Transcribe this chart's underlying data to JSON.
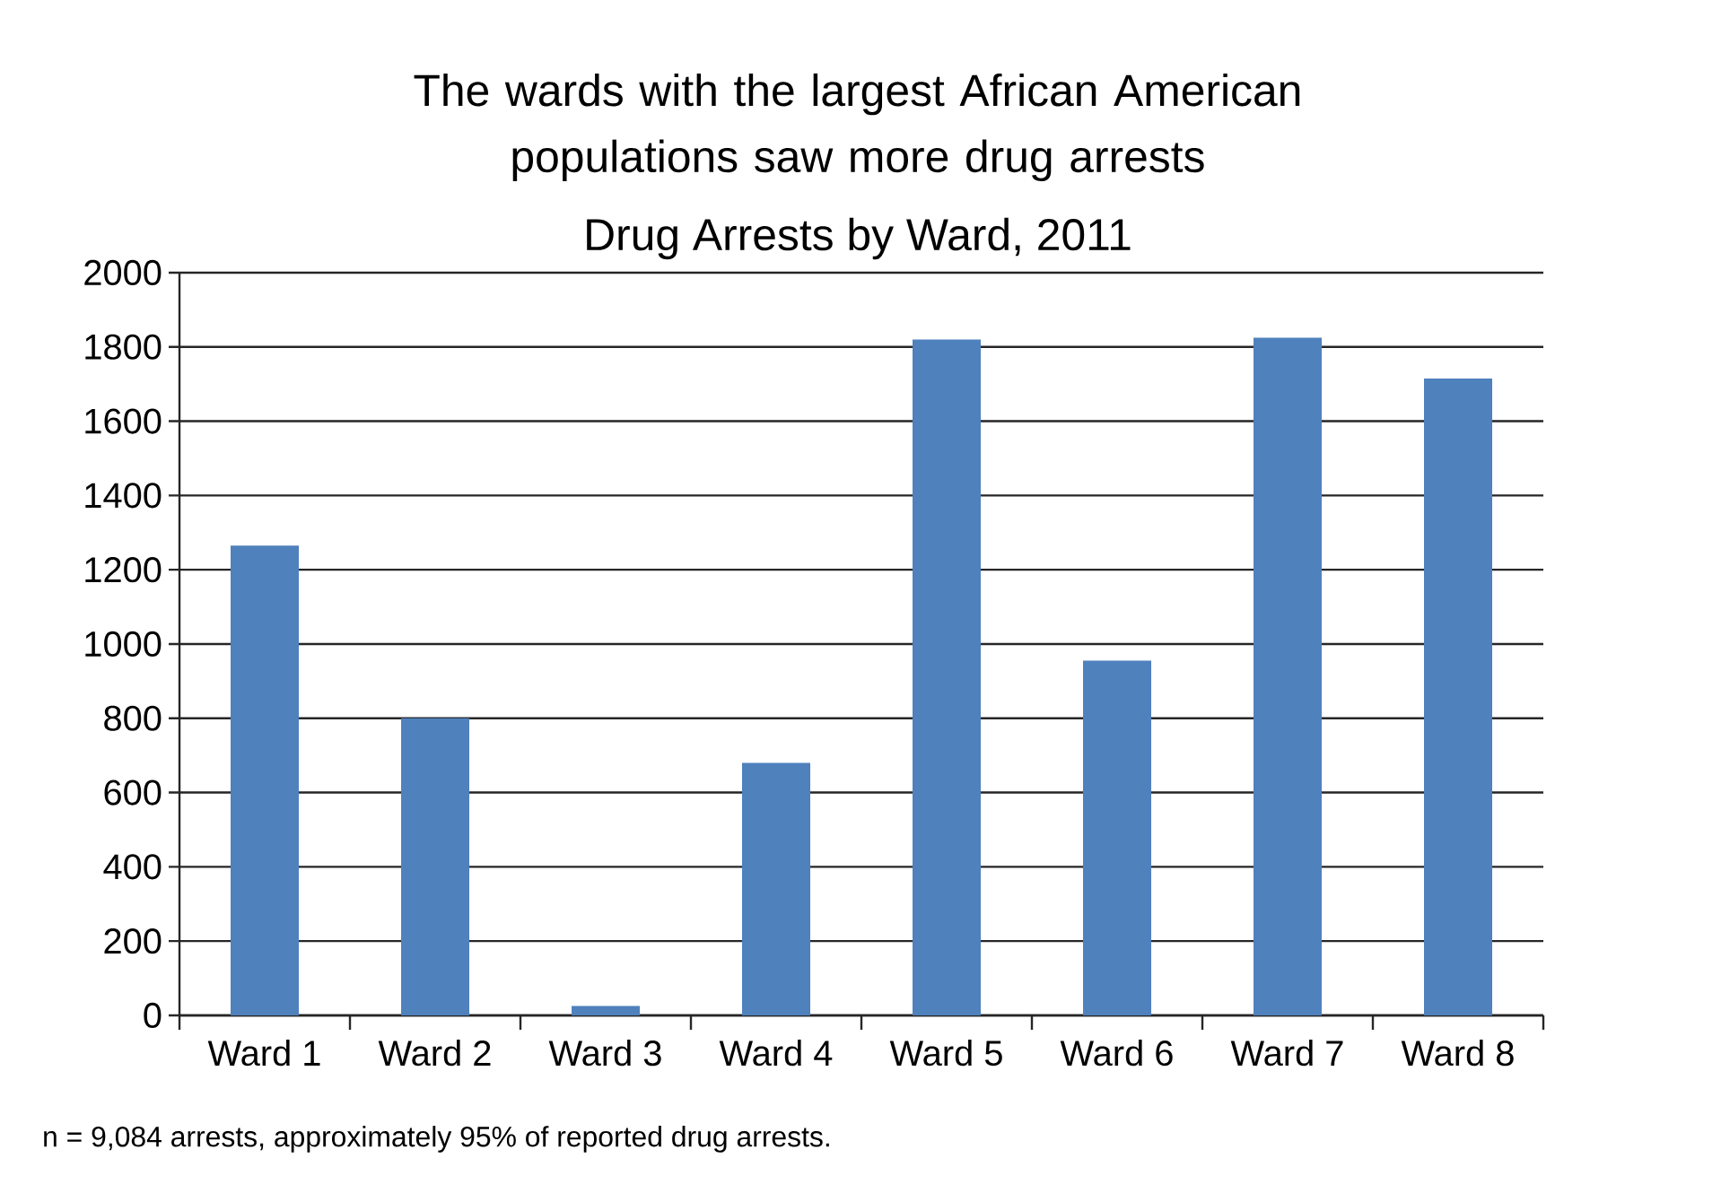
{
  "chart_data": {
    "type": "bar",
    "title": "The wards with the largest African American populations saw more drug arrests",
    "subtitle": "Drug Arrests by Ward, 2011",
    "categories": [
      "Ward 1",
      "Ward 2",
      "Ward 3",
      "Ward 4",
      "Ward 5",
      "Ward 6",
      "Ward 7",
      "Ward 8"
    ],
    "values": [
      1265,
      800,
      25,
      680,
      1820,
      955,
      1825,
      1715
    ],
    "color": "#4f81bd",
    "ylim": [
      0,
      2000
    ],
    "yticks": [
      0,
      200,
      400,
      600,
      800,
      1000,
      1200,
      1400,
      1600,
      1800,
      2000
    ],
    "grid": "y",
    "annotations": [
      "n = 9,084 arrests, approximately 95% of reported drug arrests."
    ]
  }
}
